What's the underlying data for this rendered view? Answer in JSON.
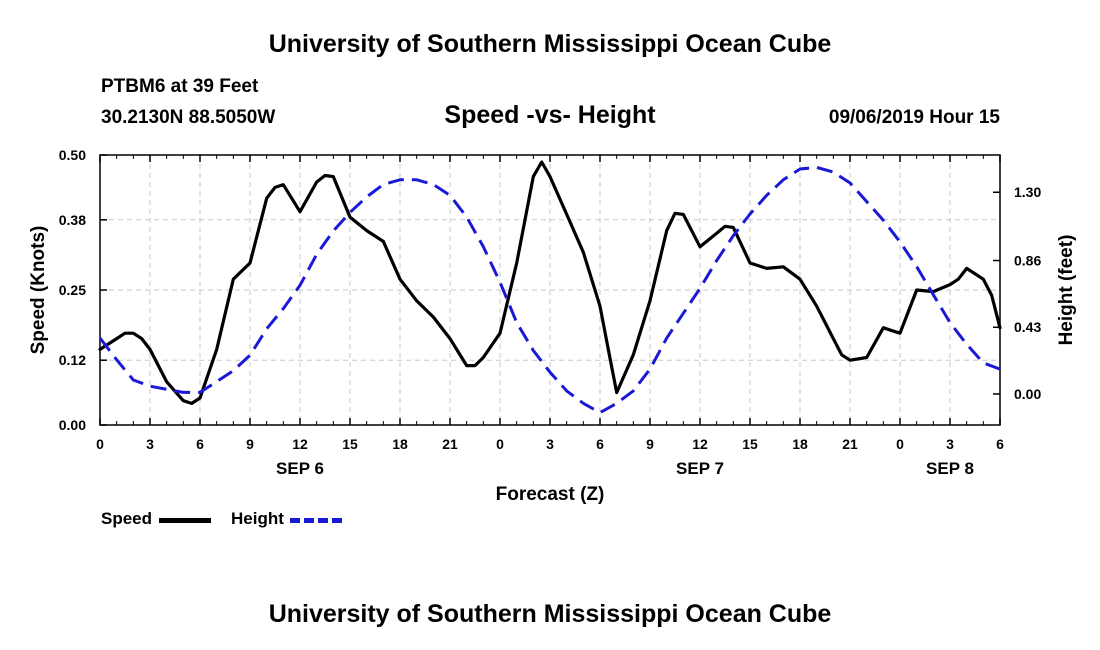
{
  "header": {
    "title": "University of Southern Mississippi Ocean Cube",
    "station": "PTBM6 at 39 Feet",
    "coordinates": "30.2130N 88.5050W",
    "timestamp": "09/06/2019 Hour 15"
  },
  "footer": {
    "title": "University of Southern Mississippi Ocean Cube"
  },
  "chart_data": {
    "type": "line",
    "title": "Speed -vs- Height",
    "xlabel": "Forecast (Z)",
    "ylabel": "Speed (Knots)",
    "y2label": "Height (feet)",
    "x_range_hours": [
      0,
      54
    ],
    "x_ticks": [
      {
        "hour": 0,
        "label": "0"
      },
      {
        "hour": 3,
        "label": "3"
      },
      {
        "hour": 6,
        "label": "6"
      },
      {
        "hour": 9,
        "label": "9"
      },
      {
        "hour": 12,
        "label": "12"
      },
      {
        "hour": 15,
        "label": "15"
      },
      {
        "hour": 18,
        "label": "18"
      },
      {
        "hour": 21,
        "label": "21"
      },
      {
        "hour": 24,
        "label": "0"
      },
      {
        "hour": 27,
        "label": "3"
      },
      {
        "hour": 30,
        "label": "6"
      },
      {
        "hour": 33,
        "label": "9"
      },
      {
        "hour": 36,
        "label": "12"
      },
      {
        "hour": 39,
        "label": "15"
      },
      {
        "hour": 42,
        "label": "18"
      },
      {
        "hour": 45,
        "label": "21"
      },
      {
        "hour": 48,
        "label": "0"
      },
      {
        "hour": 51,
        "label": "3"
      },
      {
        "hour": 54,
        "label": "6"
      }
    ],
    "date_labels": [
      {
        "hour": 12,
        "label": "SEP 6"
      },
      {
        "hour": 36,
        "label": "SEP 7"
      },
      {
        "hour": 51,
        "label": "SEP 8"
      }
    ],
    "ylim": [
      0,
      0.5
    ],
    "y_ticks": [
      0.0,
      0.12,
      0.25,
      0.38,
      0.5
    ],
    "y_tick_labels": [
      "0.00",
      "0.12",
      "0.25",
      "0.38",
      "0.50"
    ],
    "y2lim": [
      -0.2,
      1.54
    ],
    "y2_ticks": [
      0.0,
      0.43,
      0.86,
      1.3
    ],
    "y2_tick_labels": [
      "0.00",
      "0.43",
      "0.86",
      "1.30"
    ],
    "grid": true,
    "legend_position": "bottom-left",
    "series": [
      {
        "name": "Speed",
        "axis": "left",
        "color": "#000000",
        "style": "solid",
        "x": [
          0,
          1,
          1.5,
          2,
          2.5,
          3,
          4,
          5,
          5.5,
          6,
          7,
          8,
          9,
          10,
          10.5,
          11,
          12,
          13,
          13.5,
          14,
          15,
          16,
          17,
          18,
          19,
          20,
          21,
          22,
          22.5,
          23,
          24,
          25,
          26,
          26.5,
          27,
          28,
          29,
          30,
          30.5,
          31,
          32,
          33,
          34,
          34.5,
          35,
          36,
          37,
          37.5,
          38,
          39,
          40,
          41,
          42,
          43,
          44,
          44.5,
          45,
          46,
          47,
          48,
          49,
          50,
          51,
          51.5,
          52,
          53,
          53.5,
          54
        ],
        "values": [
          0.14,
          0.16,
          0.17,
          0.17,
          0.16,
          0.14,
          0.08,
          0.045,
          0.04,
          0.05,
          0.14,
          0.27,
          0.3,
          0.42,
          0.44,
          0.445,
          0.395,
          0.45,
          0.462,
          0.46,
          0.385,
          0.36,
          0.34,
          0.27,
          0.23,
          0.2,
          0.16,
          0.11,
          0.11,
          0.125,
          0.17,
          0.3,
          0.46,
          0.487,
          0.46,
          0.39,
          0.32,
          0.22,
          0.14,
          0.06,
          0.13,
          0.23,
          0.36,
          0.392,
          0.39,
          0.33,
          0.355,
          0.368,
          0.366,
          0.3,
          0.29,
          0.293,
          0.27,
          0.22,
          0.16,
          0.13,
          0.12,
          0.125,
          0.18,
          0.17,
          0.25,
          0.247,
          0.26,
          0.27,
          0.29,
          0.27,
          0.24,
          0.18
        ]
      },
      {
        "name": "Height",
        "axis": "right",
        "color": "#1a1ad6",
        "style": "dashed",
        "x": [
          0,
          1,
          2,
          3,
          4,
          5,
          6,
          7,
          8,
          9,
          10,
          11,
          12,
          13,
          14,
          15,
          16,
          17,
          18,
          19,
          20,
          21,
          22,
          23,
          24,
          25,
          26,
          27,
          28,
          29,
          30,
          31,
          32,
          33,
          34,
          35,
          36,
          37,
          38,
          39,
          40,
          41,
          42,
          43,
          44,
          45,
          46,
          47,
          48,
          49,
          50,
          51,
          52,
          53,
          54
        ],
        "values": [
          0.36,
          0.22,
          0.09,
          0.05,
          0.03,
          0.01,
          0.01,
          0.08,
          0.15,
          0.25,
          0.42,
          0.55,
          0.7,
          0.9,
          1.05,
          1.17,
          1.27,
          1.35,
          1.38,
          1.38,
          1.35,
          1.28,
          1.14,
          0.95,
          0.72,
          0.46,
          0.28,
          0.14,
          0.02,
          -0.06,
          -0.12,
          -0.06,
          0.02,
          0.16,
          0.36,
          0.52,
          0.68,
          0.86,
          1.02,
          1.16,
          1.28,
          1.38,
          1.45,
          1.46,
          1.43,
          1.36,
          1.24,
          1.12,
          0.98,
          0.82,
          0.64,
          0.46,
          0.32,
          0.2,
          0.16
        ]
      }
    ]
  }
}
